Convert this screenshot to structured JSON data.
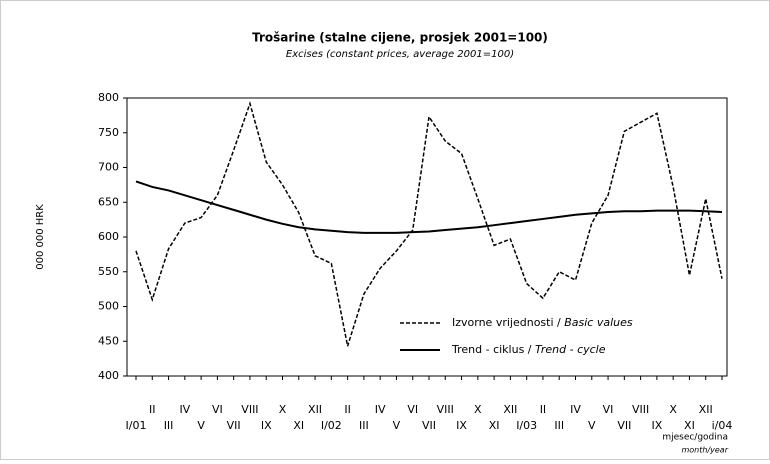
{
  "chart_data": {
    "type": "line",
    "title": "Trošarine (stalne cijene, prosjek 2001=100)",
    "subtitle": "Excises (constant prices, average 2001=100)",
    "y_label": "000 000 HRK",
    "x_label": "mjesec/godina",
    "x_label_en": "month/year",
    "categories": [
      "I/01",
      "II",
      "III",
      "IV",
      "V",
      "VI",
      "VII",
      "VIII",
      "IX",
      "X",
      "XI",
      "XII",
      "I/02",
      "II",
      "III",
      "IV",
      "V",
      "VI",
      "VII",
      "VIII",
      "IX",
      "X",
      "XI",
      "XII",
      "I/03",
      "II",
      "III",
      "IV",
      "V",
      "VI",
      "VII",
      "VIII",
      "IX",
      "X",
      "XI",
      "XII",
      "i/04"
    ],
    "series": [
      {
        "name": "Izvorne vrijednosti / ",
        "name_en": "Basic values",
        "color": "#000000",
        "dash": true,
        "values": [
          580,
          510,
          583,
          620,
          628,
          660,
          725,
          792,
          708,
          675,
          635,
          573,
          562,
          443,
          518,
          555,
          580,
          610,
          773,
          738,
          720,
          655,
          588,
          597,
          533,
          512,
          550,
          538,
          620,
          660,
          752,
          765,
          778,
          672,
          545,
          655,
          540
        ]
      },
      {
        "name": "Trend - ciklus / ",
        "name_en": "Trend - cycle",
        "color": "#000000",
        "dash": false,
        "values": [
          680,
          672,
          667,
          660,
          653,
          646,
          639,
          632,
          625,
          619,
          614,
          611,
          609,
          607,
          606,
          606,
          606,
          607,
          608,
          610,
          612,
          614,
          617,
          620,
          623,
          626,
          629,
          632,
          634,
          636,
          637,
          637,
          638,
          638,
          638,
          637,
          636
        ]
      }
    ],
    "ylim": [
      400,
      800
    ],
    "yticks": [
      400,
      450,
      500,
      550,
      600,
      650,
      700,
      750,
      800
    ]
  }
}
